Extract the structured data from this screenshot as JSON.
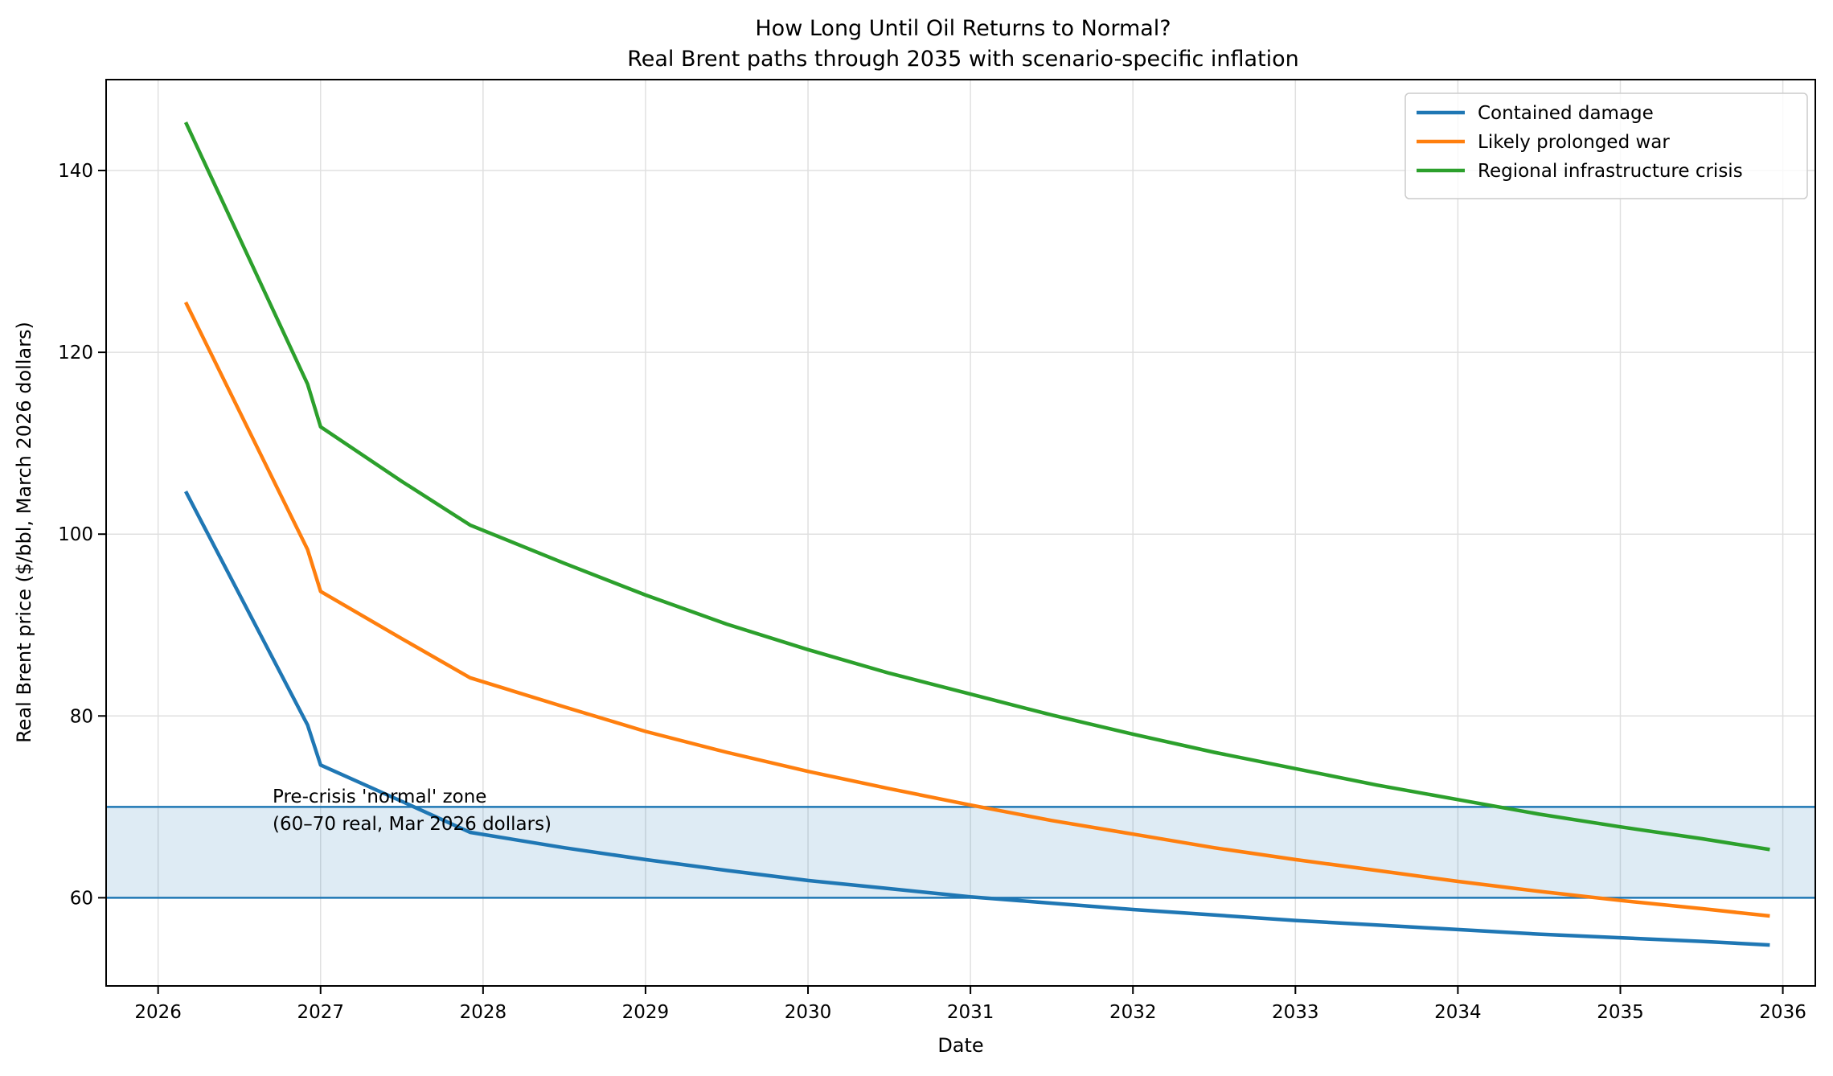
{
  "chart_data": {
    "type": "line",
    "title": "How Long Until Oil Returns to Normal?",
    "subtitle": "Real Brent paths through 2035 with scenario-specific inflation",
    "xlabel": "Date",
    "ylabel": "Real Brent price ($/bbl, March 2026 dollars)",
    "xlim": [
      2025.68,
      2036.2
    ],
    "ylim": [
      50.3,
      150
    ],
    "xticks": [
      2026,
      2027,
      2028,
      2029,
      2030,
      2031,
      2032,
      2033,
      2034,
      2035,
      2036
    ],
    "xtick_labels": [
      "2026",
      "2027",
      "2028",
      "2029",
      "2030",
      "2031",
      "2032",
      "2033",
      "2034",
      "2035",
      "2036"
    ],
    "yticks": [
      60,
      80,
      100,
      120,
      140
    ],
    "ytick_labels": [
      "60",
      "80",
      "100",
      "120",
      "140"
    ],
    "grid": true,
    "legend_position": "top-right",
    "band": {
      "low": 60,
      "high": 70,
      "color": "#1f77b4",
      "label_line1": "Pre-crisis 'normal' zone",
      "label_line2": "(60–70 real, Mar 2026 dollars)"
    },
    "x": [
      2026.17,
      2026.92,
      2027.0,
      2027.5,
      2027.92,
      2028.5,
      2029.0,
      2029.5,
      2030.0,
      2030.5,
      2031.0,
      2031.5,
      2032.0,
      2032.5,
      2033.0,
      2033.5,
      2034.0,
      2034.5,
      2035.0,
      2035.5,
      2035.92
    ],
    "series": [
      {
        "name": "Contained damage",
        "color": "#1f77b4",
        "values": [
          104.7,
          79.0,
          74.6,
          70.6,
          67.2,
          65.5,
          64.2,
          63.0,
          61.9,
          61.0,
          60.1,
          59.4,
          58.7,
          58.1,
          57.5,
          57.0,
          56.5,
          56.0,
          55.6,
          55.2,
          54.8
        ]
      },
      {
        "name": "Likely prolonged war",
        "color": "#ff7f0e",
        "values": [
          125.5,
          98.3,
          93.7,
          88.5,
          84.2,
          81.0,
          78.3,
          76.0,
          73.9,
          72.0,
          70.2,
          68.5,
          67.0,
          65.5,
          64.2,
          63.0,
          61.8,
          60.7,
          59.7,
          58.8,
          58.0
        ]
      },
      {
        "name": "Regional infrastructure crisis",
        "color": "#2ca02c",
        "values": [
          145.3,
          116.5,
          111.8,
          105.8,
          101.0,
          96.8,
          93.3,
          90.1,
          87.3,
          84.7,
          82.4,
          80.1,
          78.0,
          76.0,
          74.2,
          72.4,
          70.8,
          69.2,
          67.8,
          66.5,
          65.3
        ]
      }
    ]
  }
}
